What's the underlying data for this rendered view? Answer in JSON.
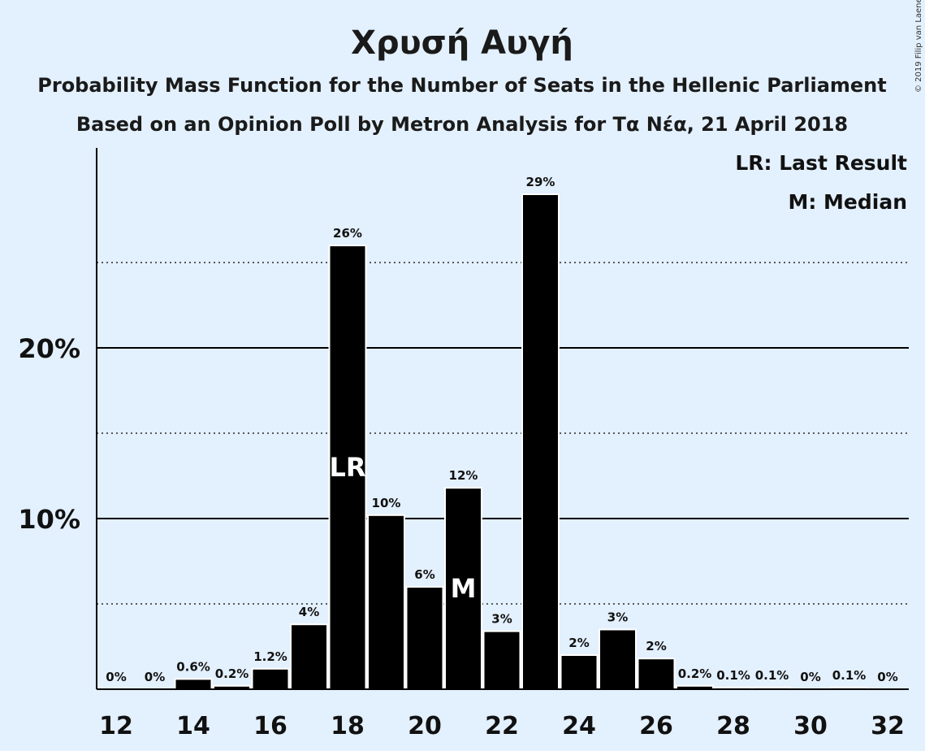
{
  "title": "Χρυσή Αυγή",
  "subtitle": "Probability Mass Function for the Number of Seats in the Hellenic Parliament",
  "subtitle2": "Based on an Opinion Poll by Metron Analysis for Τα Νέα, 21 April 2018",
  "copyright": "© 2019 Filip van Laenen",
  "legend": {
    "lr": "LR: Last Result",
    "median": "M: Median"
  },
  "colors": {
    "background": "#e3f0fd",
    "bar": "#000000",
    "bar_outline": "#ffffff",
    "text": "#1a1a1a"
  },
  "chart_data": {
    "type": "bar",
    "x": [
      12,
      13,
      14,
      15,
      16,
      17,
      18,
      19,
      20,
      21,
      22,
      23,
      24,
      25,
      26,
      27,
      28,
      29,
      30,
      31,
      32
    ],
    "values": [
      0,
      0,
      0.6,
      0.2,
      1.2,
      3.8,
      26.0,
      10.2,
      6.0,
      11.8,
      3.4,
      29.0,
      2.0,
      3.5,
      1.8,
      0.2,
      0.1,
      0.1,
      0,
      0.1,
      0
    ],
    "labels": [
      "0%",
      "0%",
      "0.6%",
      "0.2%",
      "1.2%",
      "4%",
      "26%",
      "10%",
      "6%",
      "12%",
      "3%",
      "29%",
      "2%",
      "3%",
      "2%",
      "0.2%",
      "0.1%",
      "0.1%",
      "0%",
      "0.1%",
      "0%"
    ],
    "xticks": [
      12,
      14,
      16,
      18,
      20,
      22,
      24,
      26,
      28,
      30,
      32
    ],
    "yticks": [
      {
        "value": 10,
        "label": "10%"
      },
      {
        "value": 20,
        "label": "20%"
      }
    ],
    "dotted_gridlines": [
      5,
      15,
      25
    ],
    "ylim": [
      0,
      31.5
    ],
    "markers": [
      {
        "x": 18,
        "text": "LR"
      },
      {
        "x": 21,
        "text": "M"
      }
    ]
  }
}
